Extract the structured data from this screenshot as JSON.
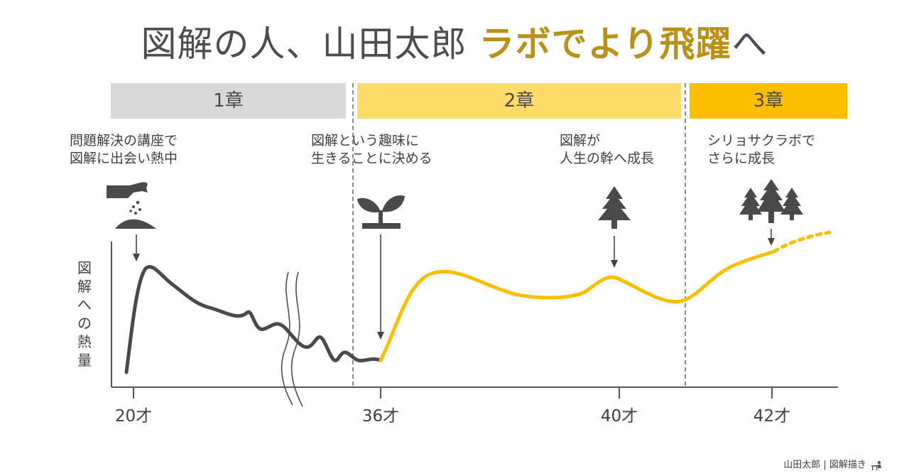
{
  "title": {
    "main": "図解の人、山田太郎",
    "highlight": "ラボでより飛躍",
    "suffix": "へ"
  },
  "chapters": [
    {
      "label": "1章",
      "color": "#d9d9d9"
    },
    {
      "label": "2章",
      "color": "#fddc6a"
    },
    {
      "label": "3章",
      "color": "#fcbf00"
    }
  ],
  "events": [
    {
      "line1": "問題解決の講座で",
      "line2": "図解に出会い熱中",
      "icon": "seed-sowing-icon"
    },
    {
      "line1": "図解という趣味に",
      "line2": "生きることに決める",
      "icon": "sprout-icon"
    },
    {
      "line1": "図解が",
      "line2": "人生の幹へ成長",
      "icon": "tree-icon"
    },
    {
      "line1": "シリョサクラボで",
      "line2": "さらに成長",
      "icon": "forest-icon"
    }
  ],
  "y_axis": {
    "label": "図解への熱量"
  },
  "x_axis": {
    "ticks": [
      "20才",
      "36才",
      "40才",
      "42才"
    ]
  },
  "line_colors": {
    "before": "#4a4a4a",
    "after": "#fcbf00"
  },
  "credit": {
    "text": "山田太郎 | 図解描き"
  }
}
